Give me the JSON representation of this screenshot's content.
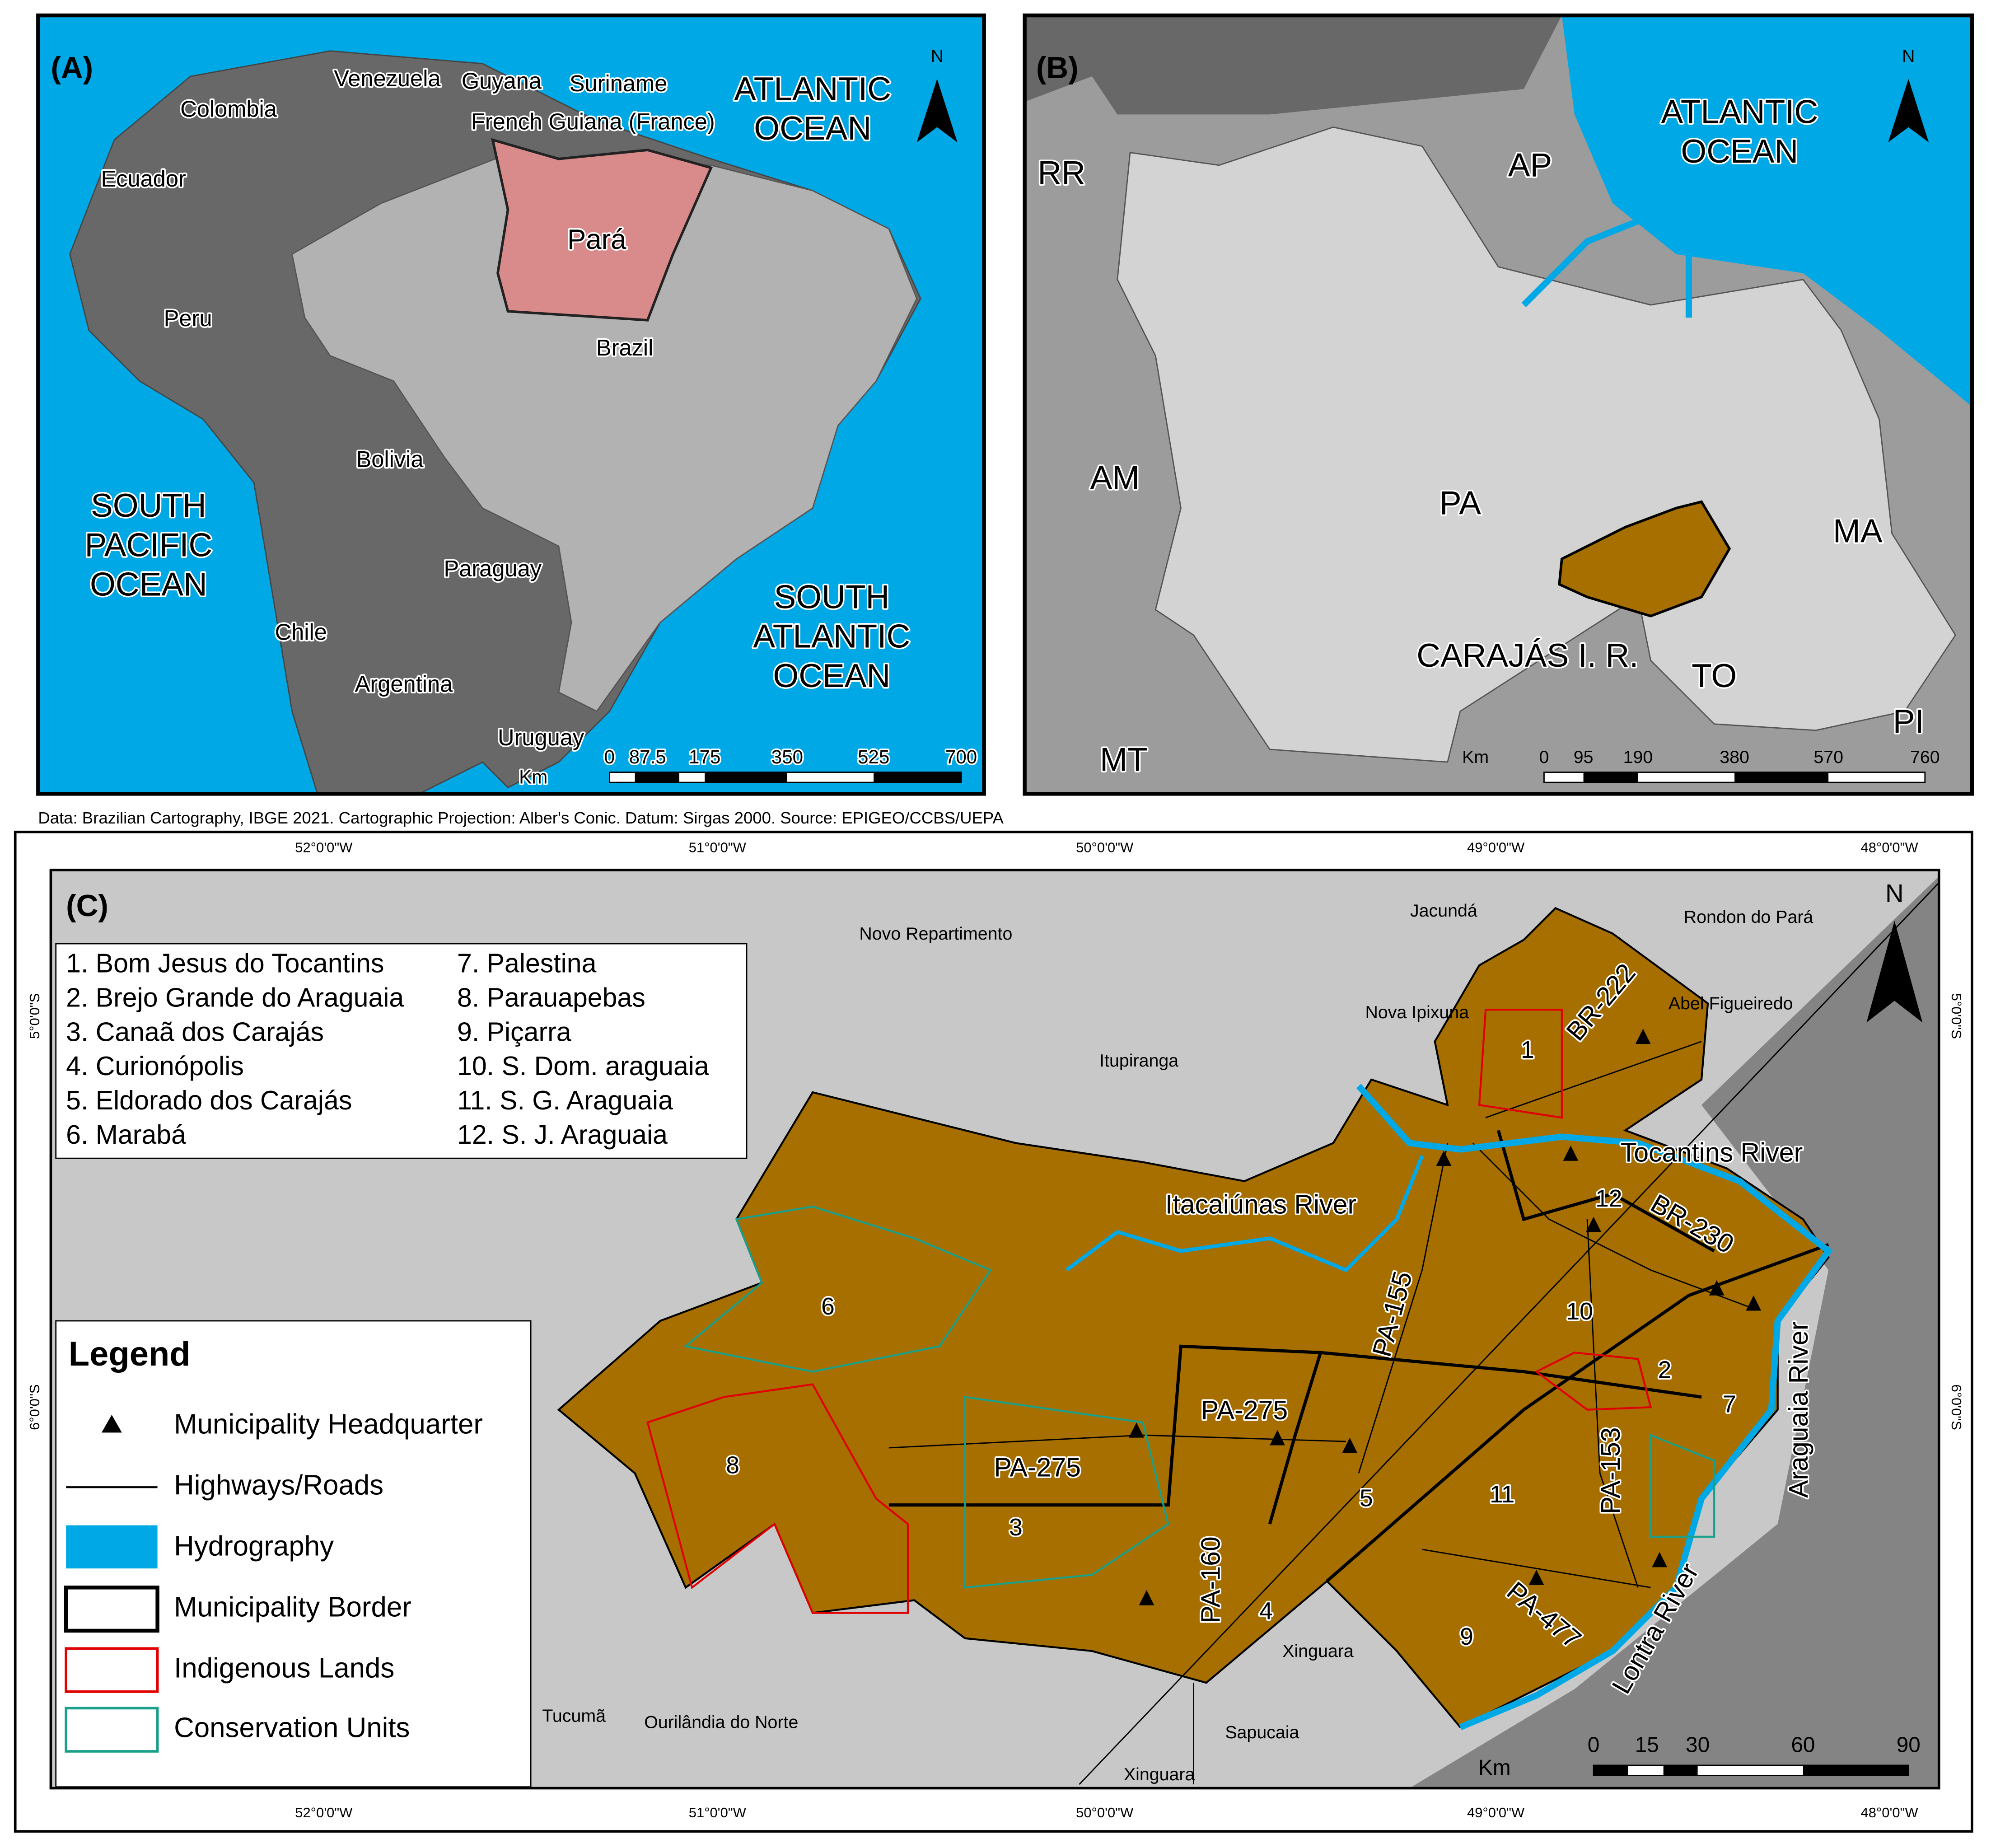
{
  "panel_a": {
    "label": "(A)",
    "north": "N",
    "places": [
      "Venezuela",
      "Guyana",
      "Suriname",
      "Colombia",
      "French Guiana (France)",
      "Ecuador",
      "Pará",
      "Peru",
      "Brazil",
      "Bolivia",
      "Paraguay",
      "Chile",
      "Argentina",
      "Uruguay"
    ],
    "oceans": [
      [
        "ATLANTIC",
        "OCEAN"
      ],
      [
        "SOUTH",
        "PACIFIC",
        "OCEAN"
      ],
      [
        "SOUTH",
        "ATLANTIC",
        "OCEAN"
      ]
    ],
    "scale": {
      "unit": "Km",
      "ticks": [
        0,
        87.5,
        175,
        350,
        525,
        700
      ]
    }
  },
  "panel_b": {
    "label": "(B)",
    "north": "N",
    "places": [
      "RR",
      "AP",
      "AM",
      "PA",
      "MA",
      "CARAJÁS I. R.",
      "TO",
      "PI",
      "MT"
    ],
    "oceans": [
      [
        "ATLANTIC",
        "OCEAN"
      ]
    ],
    "scale": {
      "unit": "Km",
      "ticks": [
        0,
        95,
        190,
        380,
        570,
        760
      ]
    }
  },
  "source": "Data: Brazilian Cartography, IBGE 2021. Cartographic Projection: Alber's Conic. Datum: Sirgas 2000. Source: EPIGEO/CCBS/UEPA",
  "panel_c": {
    "label": "(C)",
    "north": "N",
    "longitudes": [
      "52°0'0\"W",
      "51°0'0\"W",
      "50°0'0\"W",
      "49°0'0\"W",
      "48°0'0\"W"
    ],
    "latitudes": [
      "5°0'0\"S",
      "6°0'0\"S"
    ],
    "municipalities": [
      "1. Bom Jesus do Tocantins",
      "2. Brejo Grande do Araguaia",
      "3. Canaã dos Carajás",
      "4. Curionópolis",
      "5. Eldorado dos Carajás",
      "6. Marabá",
      "7. Palestina",
      "8. Parauapebas",
      "9. Piçarra",
      "10. S. Dom. araguaia",
      "11. S. G. Araguaia",
      "12. S. J. Araguaia"
    ],
    "places": [
      "Novo Repartimento",
      "Jacundá",
      "Rondon do Pará",
      "Nova Ipixuna",
      "Abel Figueiredo",
      "Itupiranga",
      "Xinguara",
      "Xinguara",
      "Tucumã",
      "Ourilândia do Norte",
      "Sapucaia"
    ],
    "map_numbers": [
      "1",
      "2",
      "3",
      "4",
      "5",
      "6",
      "7",
      "8",
      "9",
      "10",
      "11",
      "12"
    ],
    "roads": [
      "BR-222",
      "BR-230",
      "PA-155",
      "PA-275",
      "PA-275",
      "PA-153",
      "PA-160",
      "PA-477"
    ],
    "rivers": [
      "Tocantins River",
      "Itacaiúnas River",
      "Araguaia River",
      "Lontra River"
    ],
    "legend": {
      "title": "Legend",
      "items": [
        "Municipality Headquarter",
        "Highways/Roads",
        "Hydrography",
        "Municipality Border",
        "Indigenous Lands",
        "Conservation Units"
      ]
    },
    "scale": {
      "unit": "Km",
      "ticks": [
        0,
        15,
        30,
        60,
        90
      ]
    }
  }
}
